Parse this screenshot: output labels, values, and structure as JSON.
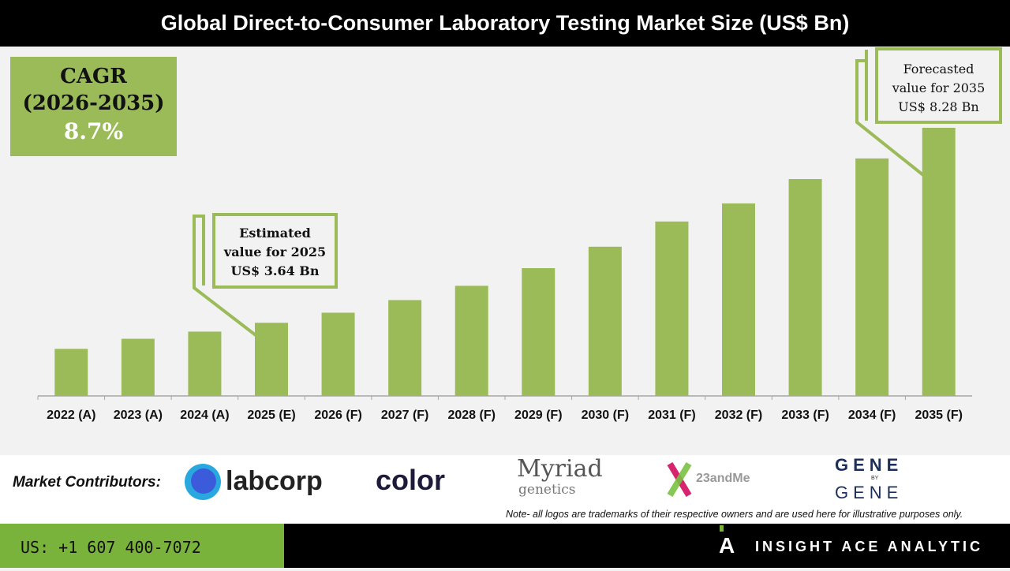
{
  "chart_data": {
    "type": "bar",
    "title": "Global Direct-to-Consumer Laboratory Testing Market Size (US$ Bn)",
    "categories": [
      "2022 (A)",
      "2023 (A)",
      "2024 (A)",
      "2025 (E)",
      "2026 (F)",
      "2027 (F)",
      "2028 (F)",
      "2029 (F)",
      "2030 (F)",
      "2031 (F)",
      "2032 (F)",
      "2033 (F)",
      "2034 (F)",
      "2035 (F)"
    ],
    "values": [
      3.02,
      3.26,
      3.43,
      3.64,
      3.88,
      4.18,
      4.52,
      4.94,
      5.45,
      6.05,
      6.48,
      7.06,
      7.55,
      8.28
    ],
    "ylim": [
      1.9,
      8.28
    ],
    "grid": false,
    "bar_color": "#9bbb59"
  },
  "cagr": {
    "label": "CAGR",
    "period": "(2026-2035)",
    "value": "8.7%"
  },
  "callouts": {
    "estimated": {
      "l1": "Estimated",
      "l2": "value for 2025",
      "l3": "US$ 3.64 Bn"
    },
    "forecast": {
      "l1": "Forecasted",
      "l2": "value for 2035",
      "l3": "US$ 8.28 Bn"
    }
  },
  "contributors": {
    "label": "Market Contributors:",
    "logos": [
      "labcorp",
      "color",
      "Myriad",
      "genetics",
      "23andMe",
      "GENE",
      "BY",
      "GENE"
    ],
    "note": "Note- all logos are trademarks of their respective owners and are used here for illustrative purposes only."
  },
  "footer": {
    "phone": "US: +1 607 400-7072",
    "brand": "INSIGHT ACE ANALYTIC"
  }
}
